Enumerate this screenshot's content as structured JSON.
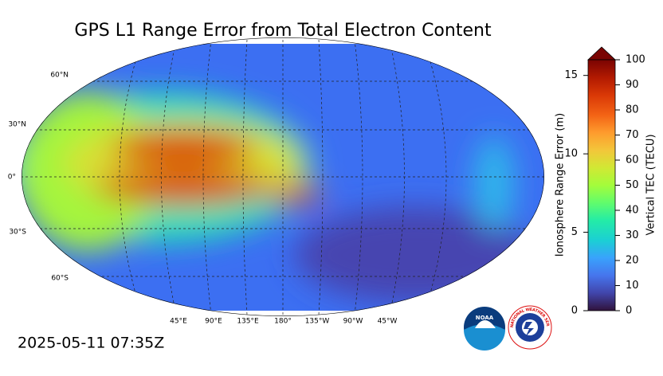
{
  "title": "GPS L1 Range Error from Total Electron Content",
  "timestamp": "2025-05-11 07:35Z",
  "map": {
    "lat_labels": [
      "60°N",
      "30°N",
      "0°",
      "30°S",
      "60°S"
    ],
    "lon_labels": [
      "45°E",
      "90°E",
      "135°E",
      "180°",
      "135°W",
      "90°W",
      "45°W"
    ]
  },
  "colorbar": {
    "left_label": "Ionosphere Range Error (m)",
    "left_lim": [
      0,
      16
    ],
    "left_ticks": [
      0,
      5,
      10,
      15
    ],
    "right_label": "Vertical TEC (TECU)",
    "right_lim": [
      0,
      100
    ],
    "right_ticks": [
      0,
      10,
      20,
      30,
      40,
      50,
      60,
      70,
      80,
      90,
      100
    ]
  },
  "logos": {
    "noaa": "NOAA",
    "nws": "NATIONAL WEATHER SERVICE"
  }
}
